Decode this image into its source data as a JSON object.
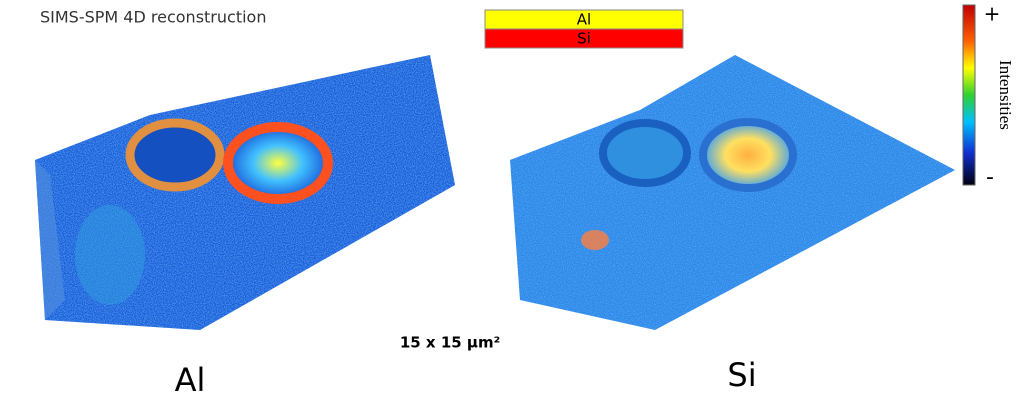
{
  "title": "SIMS-SPM 4D reconstruction",
  "legend": [
    {
      "label": "Al",
      "color": "#ffff00"
    },
    {
      "label": "Si",
      "color": "#ff0000"
    }
  ],
  "colorbar": {
    "max_label": "+",
    "label": "Intensities",
    "min_label": "-"
  },
  "scale_label": "15 x 15 µm²",
  "panels": [
    {
      "label": "Al"
    },
    {
      "label": "Si"
    }
  ]
}
